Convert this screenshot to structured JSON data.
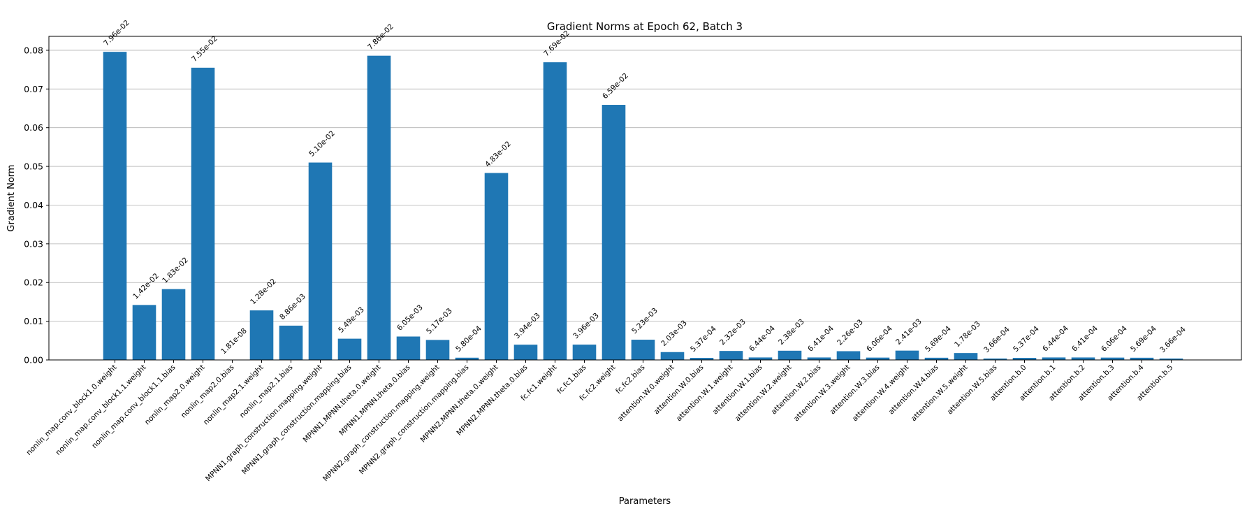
{
  "chart_data": {
    "type": "bar",
    "title": "Gradient Norms at Epoch 62, Batch 3",
    "xlabel": "Parameters",
    "ylabel": "Gradient Norm",
    "ylim": [
      0,
      0.0836
    ],
    "yticks": [
      "0.00",
      "0.01",
      "0.02",
      "0.03",
      "0.04",
      "0.05",
      "0.06",
      "0.07",
      "0.08"
    ],
    "grid": "horizontal",
    "bar_color": "#1f77b4",
    "categories": [
      "nonlin_map.conv_block1.0.weight",
      "nonlin_map.conv_block1.1.weight",
      "nonlin_map.conv_block1.1.bias",
      "nonlin_map2.0.weight",
      "nonlin_map2.0.bias",
      "nonlin_map2.1.weight",
      "nonlin_map2.1.bias",
      "MPNN1.graph_construction.mapping.weight",
      "MPNN1.graph_construction.mapping.bias",
      "MPNN1.MPNN.theta.0.weight",
      "MPNN1.MPNN.theta.0.bias",
      "MPNN2.graph_construction.mapping.weight",
      "MPNN2.graph_construction.mapping.bias",
      "MPNN2.MPNN.theta.0.weight",
      "MPNN2.MPNN.theta.0.bias",
      "fc.fc1.weight",
      "fc.fc1.bias",
      "fc.fc2.weight",
      "fc.fc2.bias",
      "attention.W.0.weight",
      "attention.W.0.bias",
      "attention.W.1.weight",
      "attention.W.1.bias",
      "attention.W.2.weight",
      "attention.W.2.bias",
      "attention.W.3.weight",
      "attention.W.3.bias",
      "attention.W.4.weight",
      "attention.W.4.bias",
      "attention.W.5.weight",
      "attention.W.5.bias",
      "attention.b.0",
      "attention.b.1",
      "attention.b.2",
      "attention.b.3",
      "attention.b.4",
      "attention.b.5"
    ],
    "values": [
      0.0796,
      0.0142,
      0.0183,
      0.0755,
      1.81e-08,
      0.0128,
      0.00886,
      0.051,
      0.00549,
      0.0786,
      0.00605,
      0.00517,
      0.00058,
      0.0483,
      0.00394,
      0.0769,
      0.00396,
      0.0659,
      0.00523,
      0.00203,
      0.000537,
      0.00232,
      0.000644,
      0.00238,
      0.000641,
      0.00226,
      0.000606,
      0.00241,
      0.000569,
      0.00178,
      0.000366,
      0.000537,
      0.000644,
      0.000641,
      0.000606,
      0.000569,
      0.000366
    ],
    "labels": [
      "7.96e-02",
      "1.42e-02",
      "1.83e-02",
      "7.55e-02",
      "1.81e-08",
      "1.28e-02",
      "8.86e-03",
      "5.10e-02",
      "5.49e-03",
      "7.86e-02",
      "6.05e-03",
      "5.17e-03",
      "5.80e-04",
      "4.83e-02",
      "3.94e-03",
      "7.69e-02",
      "3.96e-03",
      "6.59e-02",
      "5.23e-03",
      "2.03e-03",
      "5.37e-04",
      "2.32e-03",
      "6.44e-04",
      "2.38e-03",
      "6.41e-04",
      "2.26e-03",
      "6.06e-04",
      "2.41e-03",
      "5.69e-04",
      "1.78e-03",
      "3.66e-04",
      "5.37e-04",
      "6.44e-04",
      "6.41e-04",
      "6.06e-04",
      "5.69e-04",
      "3.66e-04"
    ]
  }
}
